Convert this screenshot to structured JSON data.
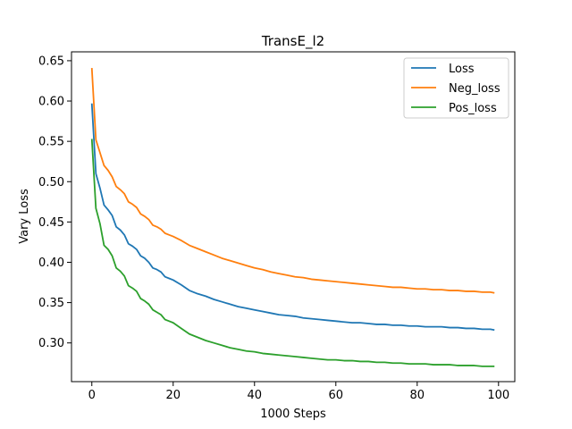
{
  "chart_data": {
    "type": "line",
    "title": "TransE_l2",
    "xlabel": "1000 Steps",
    "ylabel": "Vary Loss",
    "xlim": [
      -5,
      104
    ],
    "ylim": [
      0.252,
      0.661
    ],
    "xticks": [
      0,
      20,
      40,
      60,
      80,
      100
    ],
    "yticks": [
      0.3,
      0.35,
      0.4,
      0.45,
      0.5,
      0.55,
      0.6,
      0.65
    ],
    "grid": false,
    "legend_position": "top-right",
    "series": [
      {
        "name": "Loss",
        "color": "#1f77b4",
        "x": [
          0,
          1,
          2,
          3,
          4,
          5,
          6,
          7,
          8,
          9,
          10,
          11,
          12,
          13,
          14,
          15,
          16,
          17,
          18,
          19,
          20,
          22,
          24,
          26,
          28,
          30,
          32,
          34,
          36,
          38,
          40,
          42,
          44,
          46,
          48,
          50,
          52,
          54,
          56,
          58,
          60,
          62,
          64,
          66,
          68,
          70,
          72,
          74,
          76,
          78,
          80,
          82,
          84,
          86,
          88,
          90,
          92,
          94,
          96,
          98,
          99
        ],
        "values": [
          0.597,
          0.51,
          0.492,
          0.471,
          0.465,
          0.458,
          0.444,
          0.44,
          0.434,
          0.423,
          0.42,
          0.416,
          0.408,
          0.405,
          0.4,
          0.393,
          0.391,
          0.388,
          0.382,
          0.38,
          0.378,
          0.372,
          0.365,
          0.361,
          0.358,
          0.354,
          0.351,
          0.348,
          0.345,
          0.343,
          0.341,
          0.339,
          0.337,
          0.335,
          0.334,
          0.333,
          0.331,
          0.33,
          0.329,
          0.328,
          0.327,
          0.326,
          0.325,
          0.325,
          0.324,
          0.323,
          0.323,
          0.322,
          0.322,
          0.321,
          0.321,
          0.32,
          0.32,
          0.32,
          0.319,
          0.319,
          0.318,
          0.318,
          0.317,
          0.317,
          0.316
        ]
      },
      {
        "name": "Neg_loss",
        "color": "#ff7f0e",
        "x": [
          0,
          1,
          2,
          3,
          4,
          5,
          6,
          7,
          8,
          9,
          10,
          11,
          12,
          13,
          14,
          15,
          16,
          17,
          18,
          19,
          20,
          22,
          24,
          26,
          28,
          30,
          32,
          34,
          36,
          38,
          40,
          42,
          44,
          46,
          48,
          50,
          52,
          54,
          56,
          58,
          60,
          62,
          64,
          66,
          68,
          70,
          72,
          74,
          76,
          78,
          80,
          82,
          84,
          86,
          88,
          90,
          92,
          94,
          96,
          98,
          99
        ],
        "values": [
          0.641,
          0.552,
          0.536,
          0.52,
          0.514,
          0.506,
          0.494,
          0.49,
          0.485,
          0.475,
          0.472,
          0.468,
          0.46,
          0.457,
          0.453,
          0.446,
          0.444,
          0.441,
          0.436,
          0.434,
          0.432,
          0.427,
          0.421,
          0.417,
          0.413,
          0.409,
          0.405,
          0.402,
          0.399,
          0.396,
          0.393,
          0.391,
          0.388,
          0.386,
          0.384,
          0.382,
          0.381,
          0.379,
          0.378,
          0.377,
          0.376,
          0.375,
          0.374,
          0.373,
          0.372,
          0.371,
          0.37,
          0.369,
          0.369,
          0.368,
          0.367,
          0.367,
          0.366,
          0.366,
          0.365,
          0.365,
          0.364,
          0.364,
          0.363,
          0.363,
          0.362
        ]
      },
      {
        "name": "Pos_loss",
        "color": "#2ca02c",
        "x": [
          0,
          1,
          2,
          3,
          4,
          5,
          6,
          7,
          8,
          9,
          10,
          11,
          12,
          13,
          14,
          15,
          16,
          17,
          18,
          19,
          20,
          22,
          24,
          26,
          28,
          30,
          32,
          34,
          36,
          38,
          40,
          42,
          44,
          46,
          48,
          50,
          52,
          54,
          56,
          58,
          60,
          62,
          64,
          66,
          68,
          70,
          72,
          74,
          76,
          78,
          80,
          82,
          84,
          86,
          88,
          90,
          92,
          94,
          96,
          98,
          99
        ],
        "values": [
          0.553,
          0.467,
          0.448,
          0.421,
          0.416,
          0.408,
          0.393,
          0.389,
          0.383,
          0.371,
          0.368,
          0.364,
          0.355,
          0.352,
          0.348,
          0.341,
          0.338,
          0.335,
          0.329,
          0.327,
          0.325,
          0.318,
          0.311,
          0.307,
          0.303,
          0.3,
          0.297,
          0.294,
          0.292,
          0.29,
          0.289,
          0.287,
          0.286,
          0.285,
          0.284,
          0.283,
          0.282,
          0.281,
          0.28,
          0.279,
          0.279,
          0.278,
          0.278,
          0.277,
          0.277,
          0.276,
          0.276,
          0.275,
          0.275,
          0.274,
          0.274,
          0.274,
          0.273,
          0.273,
          0.273,
          0.272,
          0.272,
          0.272,
          0.271,
          0.271,
          0.271
        ]
      }
    ]
  }
}
